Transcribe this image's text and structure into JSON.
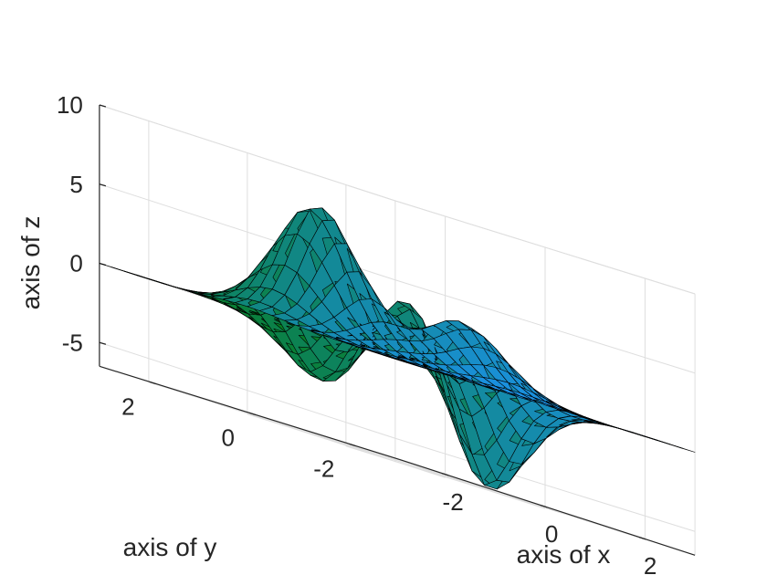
{
  "chart_data": {
    "type": "surface",
    "function": "peaks",
    "x": [
      -3,
      -2.75,
      -2.5,
      -2.25,
      -2,
      -1.75,
      -1.5,
      -1.25,
      -1,
      -0.75,
      -0.5,
      -0.25,
      0,
      0.25,
      0.5,
      0.75,
      1,
      1.25,
      1.5,
      1.75,
      2,
      2.25,
      2.5,
      2.75,
      3
    ],
    "y": [
      -3,
      -2.75,
      -2.5,
      -2.25,
      -2,
      -1.75,
      -1.5,
      -1.25,
      -1,
      -0.75,
      -0.5,
      -0.25,
      0,
      0.25,
      0.5,
      0.75,
      1,
      1.25,
      1.5,
      1.75,
      2,
      2.25,
      2.5,
      2.75,
      3
    ],
    "xlabel": "axis of x",
    "ylabel": "axis of y",
    "zlabel": "axis of z",
    "xlim": [
      -3,
      3
    ],
    "ylim": [
      -3,
      3
    ],
    "zlim": [
      -6.5,
      10
    ],
    "xticks": [
      -2,
      0,
      2
    ],
    "yticks": [
      -2,
      0,
      2
    ],
    "zticks": [
      -5,
      0,
      5,
      10
    ],
    "xtick_labels": [
      "-2",
      "0",
      "2"
    ],
    "ytick_labels": [
      "-2",
      "0",
      "2"
    ],
    "ztick_labels": [
      "-5",
      "0",
      "5",
      "10"
    ],
    "grid": true,
    "colormap": {
      "x_min_color": "#047a08",
      "x_max_color": "#1c93f6"
    },
    "edge_color": "#000000"
  }
}
